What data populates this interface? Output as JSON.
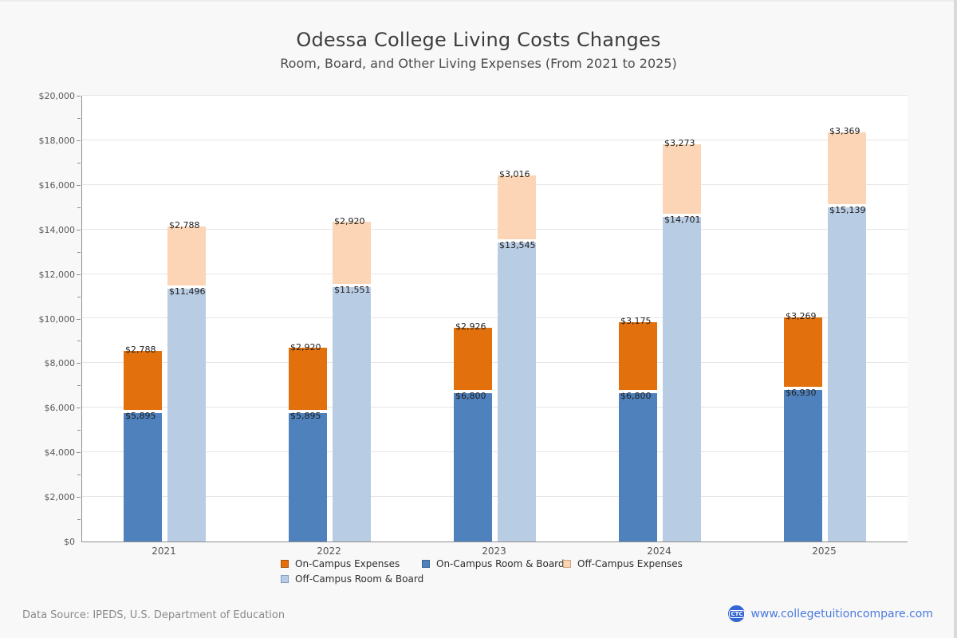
{
  "title": "Odessa College Living Costs Changes",
  "subtitle": "Room, Board, and Other Living Expenses (From 2021 to 2025)",
  "chart_data": {
    "type": "bar",
    "stacked": true,
    "title": "Odessa College Living Costs Changes",
    "subtitle": "Room, Board, and Other Living Expenses (From 2021 to 2025)",
    "categories": [
      "2021",
      "2022",
      "2023",
      "2024",
      "2025"
    ],
    "series": [
      {
        "name": "On-Campus Room & Board",
        "bar": "on-campus",
        "stack_order": 0,
        "color": "#4F81BD",
        "border": "#3A6491",
        "values": [
          5895,
          5895,
          6800,
          6800,
          6930
        ]
      },
      {
        "name": "On-Campus Expenses",
        "bar": "on-campus",
        "stack_order": 1,
        "color": "#E2710D",
        "border": "#A85608",
        "values": [
          2788,
          2920,
          2926,
          3175,
          3269
        ]
      },
      {
        "name": "Off-Campus Room & Board",
        "bar": "off-campus",
        "stack_order": 0,
        "color": "#B8CCE4",
        "border": "#7E9CC0",
        "values": [
          11496,
          11551,
          13545,
          14701,
          15139
        ]
      },
      {
        "name": "Off-Campus Expenses",
        "bar": "off-campus",
        "stack_order": 1,
        "color": "#FBD5B5",
        "border": "#C9A77C",
        "values": [
          2788,
          2920,
          3016,
          3273,
          3369
        ]
      }
    ],
    "value_prefix": "$",
    "ylim": [
      0,
      20000
    ],
    "ytick_step": 2000,
    "ytick_labels": [
      "$0",
      "$2,000",
      "$4,000",
      "$6,000",
      "$8,000",
      "$10,000",
      "$12,000",
      "$14,000",
      "$16,000",
      "$18,000",
      "$20,000"
    ],
    "grid": true,
    "legend_position": "bottom",
    "legend": [
      {
        "label": "On-Campus Expenses",
        "color": "#E2710D",
        "border": "#A85608"
      },
      {
        "label": "On-Campus Room & Board",
        "color": "#4F81BD",
        "border": "#3A6491"
      },
      {
        "label": "Off-Campus Expenses",
        "color": "#FBD5B5",
        "border": "#C9A77C"
      },
      {
        "label": "Off-Campus Room & Board",
        "color": "#B8CCE4",
        "border": "#7E9CC0"
      }
    ]
  },
  "footer": {
    "source": "Data Source: IPEDS, U.S. Department of Education",
    "website": "www.collegetuitioncompare.com",
    "logo": "CTC"
  }
}
